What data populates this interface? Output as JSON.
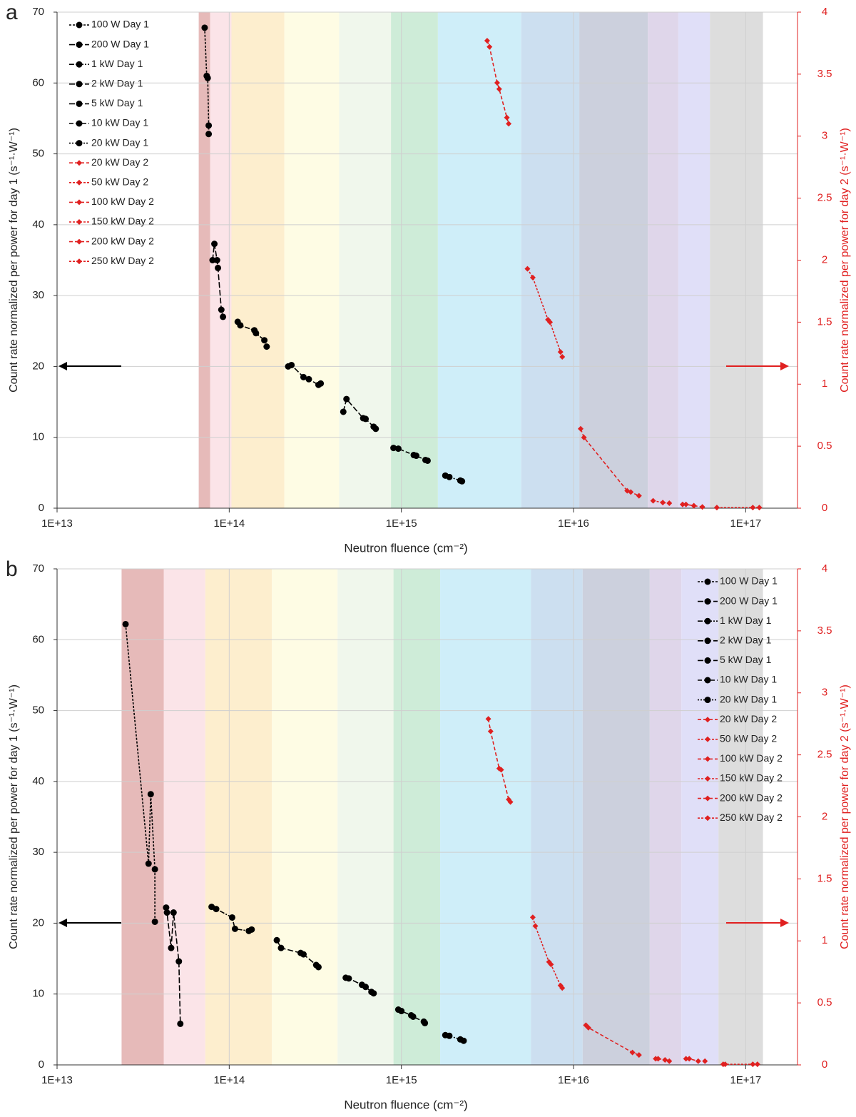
{
  "chart_data": [
    {
      "type": "line",
      "panel": "a",
      "xscale": "log",
      "grid": true,
      "legend": "upper left",
      "xlabel": "Neutron fluence (cm⁻²)",
      "ylabel": "Count rate normalized per power for day 1 (s⁻¹·W⁻¹)",
      "y2label": "Count rate normalized per power for day 2 (s⁻¹·W⁻¹)",
      "xlim": [
        10000000000000.0,
        2e+17
      ],
      "xticks": [
        {
          "value": 10000000000000.0,
          "label": "1E+13"
        },
        {
          "value": 100000000000000.0,
          "label": "1E+14"
        },
        {
          "value": 1000000000000000.0,
          "label": "1E+15"
        },
        {
          "value": 1e+16,
          "label": "1E+16"
        },
        {
          "value": 1e+17,
          "label": "1E+17"
        }
      ],
      "ylim": [
        0,
        70
      ],
      "yticks": [
        0,
        10,
        20,
        30,
        40,
        50,
        60,
        70
      ],
      "y2lim": [
        0,
        4
      ],
      "y2ticks": [
        0,
        0.5,
        1,
        1.5,
        2,
        2.5,
        3,
        3.5,
        4
      ],
      "bands": [
        {
          "color": "#e3b2b1",
          "x": [
            66500000000000.0,
            77500000000000.0
          ]
        },
        {
          "color": "#fbe1e5",
          "x": [
            77500000000000.0,
            103000000000000.0
          ]
        },
        {
          "color": "#fdecc9",
          "x": [
            103000000000000.0,
            209000000000000.0
          ]
        },
        {
          "color": "#fefce1",
          "x": [
            209000000000000.0,
            435000000000000.0
          ]
        },
        {
          "color": "#eef6ea",
          "x": [
            435000000000000.0,
            870000000000000.0
          ]
        },
        {
          "color": "#c9ead4",
          "x": [
            870000000000000.0,
            1630000000000000.0
          ]
        },
        {
          "color": "#caecf8",
          "x": [
            1630000000000000.0,
            4970000000000000.0
          ]
        },
        {
          "color": "#c6dcee",
          "x": [
            4970000000000000.0,
            1.08e+16
          ]
        },
        {
          "color": "#c6cbd9",
          "x": [
            1.08e+16,
            2.7e+16
          ]
        },
        {
          "color": "#dcd1e8",
          "x": [
            2.7e+16,
            4.06e+16
          ]
        },
        {
          "color": "#dddcf7",
          "x": [
            4.06e+16,
            6.2e+16
          ]
        },
        {
          "color": "#d9d9d9",
          "x": [
            6.2e+16,
            1.26e+17
          ]
        }
      ],
      "series": [
        {
          "name": "100 W Day 1",
          "color": "#000000",
          "dash": "3,2",
          "marker": "circle",
          "x": [
            72000000000000.0,
            74000000000000.0,
            75000000000000.0,
            76000000000000.0,
            76000000000000.0
          ],
          "values": [
            67.8,
            61,
            60.7,
            54,
            52.8
          ]
        },
        {
          "name": "200 W Day 1",
          "color": "#000000",
          "dash": "8,3",
          "marker": "circle",
          "x": [
            80000000000000.0,
            82000000000000.0,
            85000000000000.0,
            86000000000000.0,
            90000000000000.0,
            92000000000000.0
          ],
          "values": [
            35,
            37.3,
            35,
            33.9,
            28,
            27
          ]
        },
        {
          "name": "1 kW Day 1",
          "color": "#000000",
          "dash": "7,2,2,2",
          "marker": "circle",
          "x": [
            112000000000000.0,
            116000000000000.0,
            140000000000000.0,
            143000000000000.0,
            160000000000000.0,
            165000000000000.0
          ],
          "values": [
            26.3,
            25.8,
            25.1,
            24.7,
            23.7,
            22.8
          ]
        },
        {
          "name": "2 kW Day 1",
          "color": "#000000",
          "dash": "8,3",
          "marker": "circle",
          "x": [
            220000000000000.0,
            230000000000000.0,
            270000000000000.0,
            290000000000000.0,
            330000000000000.0,
            340000000000000.0
          ],
          "values": [
            20,
            20.2,
            18.5,
            18.2,
            17.4,
            17.6
          ]
        },
        {
          "name": "5 kW Day 1",
          "color": "#000000",
          "dash": "8,3",
          "marker": "circle",
          "x": [
            460000000000000.0,
            480000000000000.0,
            600000000000000.0,
            620000000000000.0,
            690000000000000.0,
            710000000000000.0
          ],
          "values": [
            13.6,
            15.4,
            12.7,
            12.6,
            11.5,
            11.2
          ]
        },
        {
          "name": "10 kW Day 1",
          "color": "#000000",
          "dash": "6,3",
          "marker": "circle",
          "x": [
            900000000000000.0,
            960000000000000.0,
            1180000000000000.0,
            1220000000000000.0,
            1380000000000000.0,
            1420000000000000.0
          ],
          "values": [
            8.5,
            8.4,
            7.5,
            7.4,
            6.8,
            6.7
          ]
        },
        {
          "name": "20 kW Day 1",
          "color": "#000000",
          "dash": "2,2",
          "marker": "circle",
          "x": [
            1800000000000000.0,
            1900000000000000.0,
            2200000000000000.0,
            2250000000000000.0
          ],
          "values": [
            4.6,
            4.4,
            3.9,
            3.8
          ]
        },
        {
          "name": "20 kW Day 2",
          "color": "#e02020",
          "dash": "5,3",
          "marker": "diamond",
          "axis": "y2",
          "x": [
            3150000000000000.0,
            3250000000000000.0,
            3600000000000000.0,
            3700000000000000.0,
            4100000000000000.0,
            4200000000000000.0
          ],
          "values": [
            3.77,
            3.72,
            3.43,
            3.38,
            3.15,
            3.1
          ]
        },
        {
          "name": "50 kW Day 2",
          "color": "#e02020",
          "dash": "3,2",
          "marker": "diamond",
          "axis": "y2",
          "x": [
            5400000000000000.0,
            5800000000000000.0,
            7100000000000000.0,
            7300000000000000.0,
            8400000000000000.0,
            8600000000000000.0
          ],
          "values": [
            1.93,
            1.86,
            1.52,
            1.5,
            1.26,
            1.22
          ]
        },
        {
          "name": "100 kW Day 2",
          "color": "#e02020",
          "dash": "5,3",
          "marker": "diamond",
          "axis": "y2",
          "x": [
            1.1e+16,
            1.15e+16,
            2.05e+16,
            2.15e+16,
            2.4e+16
          ],
          "values": [
            0.64,
            0.57,
            0.14,
            0.13,
            0.1
          ]
        },
        {
          "name": "150 kW Day 2",
          "color": "#e02020",
          "dash": "3,2",
          "marker": "diamond",
          "axis": "y2",
          "x": [
            2.9e+16,
            3.3e+16,
            3.6e+16
          ],
          "values": [
            0.06,
            0.045,
            0.04
          ]
        },
        {
          "name": "200 kW Day 2",
          "color": "#e02020",
          "dash": "5,3",
          "marker": "diamond",
          "axis": "y2",
          "x": [
            4.3e+16,
            4.5e+16,
            5e+16,
            5.6e+16
          ],
          "values": [
            0.03,
            0.03,
            0.02,
            0.01
          ]
        },
        {
          "name": "250 kW Day 2",
          "color": "#e02020",
          "dash": "3,2",
          "marker": "diamond",
          "axis": "y2",
          "x": [
            6.8e+16,
            1.1e+17,
            1.2e+17
          ],
          "values": [
            0.005,
            0.005,
            0.005
          ]
        }
      ]
    },
    {
      "type": "line",
      "panel": "b",
      "xscale": "log",
      "grid": true,
      "legend": "upper right",
      "xlabel": "Neutron fluence (cm⁻²)",
      "ylabel": "Count rate normalized per power for day 1 (s⁻¹·W⁻¹)",
      "y2label": "Count rate normalized per power for day 2 (s⁻¹·W⁻¹)",
      "xlim": [
        10000000000000.0,
        2e+17
      ],
      "xticks": [
        {
          "value": 10000000000000.0,
          "label": "1E+13"
        },
        {
          "value": 100000000000000.0,
          "label": "1E+14"
        },
        {
          "value": 1000000000000000.0,
          "label": "1E+15"
        },
        {
          "value": 1e+16,
          "label": "1E+16"
        },
        {
          "value": 1e+17,
          "label": "1E+17"
        }
      ],
      "ylim": [
        0,
        70
      ],
      "yticks": [
        0,
        10,
        20,
        30,
        40,
        50,
        60,
        70
      ],
      "y2lim": [
        0,
        4
      ],
      "y2ticks": [
        0,
        0.5,
        1,
        1.5,
        2,
        2.5,
        3,
        3.5,
        4
      ],
      "bands": [
        {
          "color": "#e3b2b1",
          "x": [
            23700000000000.0,
            41700000000000.0
          ]
        },
        {
          "color": "#fbe1e5",
          "x": [
            41700000000000.0,
            72600000000000.0
          ]
        },
        {
          "color": "#fdecc9",
          "x": [
            72600000000000.0,
            177000000000000.0
          ]
        },
        {
          "color": "#fefce1",
          "x": [
            177000000000000.0,
            426000000000000.0
          ]
        },
        {
          "color": "#eef6ea",
          "x": [
            426000000000000.0,
            900000000000000.0
          ]
        },
        {
          "color": "#c9ead4",
          "x": [
            900000000000000.0,
            1680000000000000.0
          ]
        },
        {
          "color": "#caecf8",
          "x": [
            1680000000000000.0,
            5660000000000000.0
          ]
        },
        {
          "color": "#c6dcee",
          "x": [
            5660000000000000.0,
            1.13e+16
          ]
        },
        {
          "color": "#c6cbd9",
          "x": [
            1.13e+16,
            2.77e+16
          ]
        },
        {
          "color": "#dcd1e8",
          "x": [
            2.77e+16,
            4.23e+16
          ]
        },
        {
          "color": "#dddcf7",
          "x": [
            4.23e+16,
            6.95e+16
          ]
        },
        {
          "color": "#d9d9d9",
          "x": [
            6.95e+16,
            1.26e+17
          ]
        }
      ],
      "series": [
        {
          "name": "100 W Day 1",
          "color": "#000000",
          "dash": "3,2",
          "marker": "circle",
          "x": [
            25000000000000.0,
            34000000000000.0,
            35000000000000.0,
            37000000000000.0,
            37000000000000.0
          ],
          "values": [
            62.2,
            28.4,
            38.2,
            27.6,
            20.2
          ]
        },
        {
          "name": "200 W Day 1",
          "color": "#000000",
          "dash": "8,3",
          "marker": "circle",
          "x": [
            43000000000000.0,
            43500000000000.0,
            46000000000000.0,
            47500000000000.0,
            51000000000000.0,
            52000000000000.0
          ],
          "values": [
            22.2,
            21.5,
            16.5,
            21.5,
            14.6,
            5.8
          ]
        },
        {
          "name": "1 kW Day 1",
          "color": "#000000",
          "dash": "7,2,2,2",
          "marker": "circle",
          "x": [
            79000000000000.0,
            84000000000000.0,
            104000000000000.0,
            108000000000000.0,
            130000000000000.0,
            135000000000000.0
          ],
          "values": [
            22.3,
            22,
            20.8,
            19.2,
            18.9,
            19.1
          ]
        },
        {
          "name": "2 kW Day 1",
          "color": "#000000",
          "dash": "8,3",
          "marker": "circle",
          "x": [
            189000000000000.0,
            200000000000000.0,
            260000000000000.0,
            270000000000000.0,
            320000000000000.0,
            330000000000000.0
          ],
          "values": [
            17.6,
            16.5,
            15.8,
            15.6,
            14.1,
            13.8
          ]
        },
        {
          "name": "5 kW Day 1",
          "color": "#000000",
          "dash": "8,3",
          "marker": "circle",
          "x": [
            475000000000000.0,
            495000000000000.0,
            590000000000000.0,
            620000000000000.0,
            670000000000000.0,
            690000000000000.0
          ],
          "values": [
            12.3,
            12.2,
            11.3,
            11,
            10.3,
            10.1
          ]
        },
        {
          "name": "10 kW Day 1",
          "color": "#000000",
          "dash": "6,3",
          "marker": "circle",
          "x": [
            960000000000000.0,
            1000000000000000.0,
            1140000000000000.0,
            1170000000000000.0,
            1350000000000000.0,
            1370000000000000.0
          ],
          "values": [
            7.8,
            7.6,
            7,
            6.8,
            6.1,
            5.9
          ]
        },
        {
          "name": "20 kW Day 1",
          "color": "#000000",
          "dash": "2,2",
          "marker": "circle",
          "x": [
            1800000000000000.0,
            1900000000000000.0,
            2200000000000000.0,
            2300000000000000.0
          ],
          "values": [
            4.2,
            4.1,
            3.6,
            3.4
          ]
        },
        {
          "name": "20 kW Day 2",
          "color": "#e02020",
          "dash": "5,3",
          "marker": "diamond",
          "axis": "y2",
          "x": [
            3200000000000000.0,
            3300000000000000.0,
            3700000000000000.0,
            3800000000000000.0,
            4200000000000000.0,
            4300000000000000.0
          ],
          "values": [
            2.79,
            2.69,
            2.39,
            2.38,
            2.14,
            2.12
          ]
        },
        {
          "name": "50 kW Day 2",
          "color": "#e02020",
          "dash": "3,2",
          "marker": "diamond",
          "axis": "y2",
          "x": [
            5800000000000000.0,
            6000000000000000.0,
            7200000000000000.0,
            7400000000000000.0,
            8400000000000000.0,
            8600000000000000.0
          ],
          "values": [
            1.19,
            1.12,
            0.83,
            0.81,
            0.64,
            0.62
          ]
        },
        {
          "name": "100 kW Day 2",
          "color": "#e02020",
          "dash": "5,3",
          "marker": "diamond",
          "axis": "y2",
          "x": [
            1.18e+16,
            1.22e+16,
            2.2e+16,
            2.4e+16
          ],
          "values": [
            0.32,
            0.3,
            0.1,
            0.08
          ]
        },
        {
          "name": "150 kW Day 2",
          "color": "#e02020",
          "dash": "3,2",
          "marker": "diamond",
          "axis": "y2",
          "x": [
            3e+16,
            3.1e+16,
            3.4e+16,
            3.6e+16
          ],
          "values": [
            0.05,
            0.05,
            0.04,
            0.03
          ]
        },
        {
          "name": "200 kW Day 2",
          "color": "#e02020",
          "dash": "5,3",
          "marker": "diamond",
          "axis": "y2",
          "x": [
            4.5e+16,
            4.7e+16,
            5.3e+16,
            5.8e+16
          ],
          "values": [
            0.05,
            0.05,
            0.03,
            0.03
          ]
        },
        {
          "name": "250 kW Day 2",
          "color": "#e02020",
          "dash": "3,2",
          "marker": "diamond",
          "axis": "y2",
          "x": [
            7.4e+16,
            7.6e+16,
            1.1e+17,
            1.17e+17
          ],
          "values": [
            0.005,
            0.005,
            0.005,
            0.005
          ]
        }
      ]
    }
  ]
}
